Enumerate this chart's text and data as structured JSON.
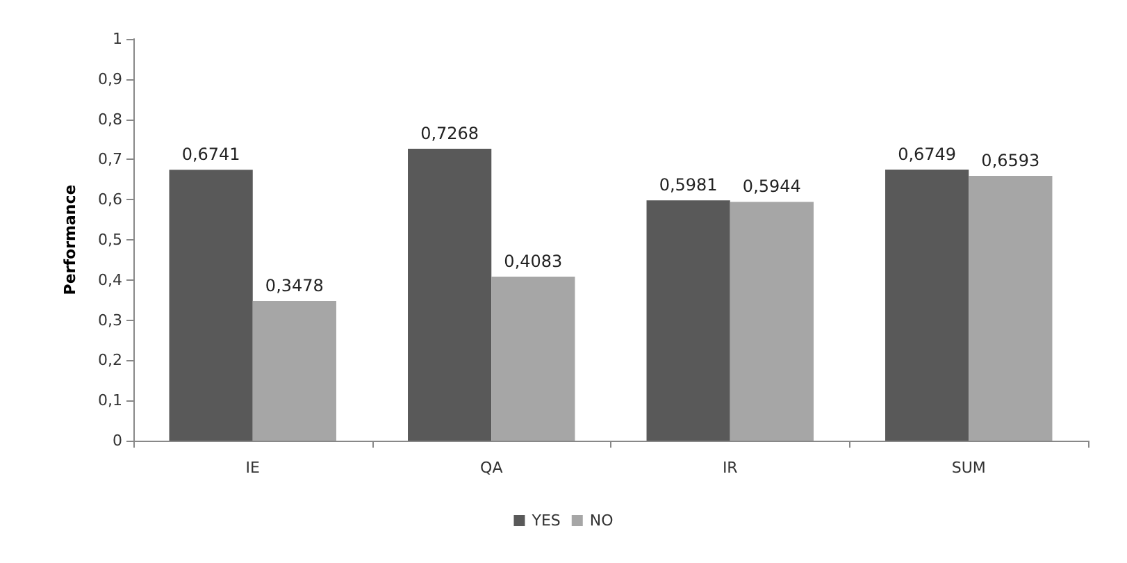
{
  "chart_data": {
    "type": "bar",
    "ylabel": "Performance",
    "categories": [
      "IE",
      "QA",
      "IR",
      "SUM"
    ],
    "series": [
      {
        "name": "YES",
        "color": "#595959",
        "values": [
          0.6741,
          0.7268,
          0.5981,
          0.6749
        ],
        "value_labels": [
          "0,6741",
          "0,7268",
          "0,5981",
          "0,6749"
        ]
      },
      {
        "name": "NO",
        "color": "#a6a6a6",
        "values": [
          0.3478,
          0.4083,
          0.5944,
          0.6593
        ],
        "value_labels": [
          "0,3478",
          "0,4083",
          "0,5944",
          "0,6593"
        ]
      }
    ],
    "ylim": [
      0,
      1
    ],
    "yticks": [
      0,
      {
        "value": 0.1,
        "label": "0,1"
      },
      {
        "value": 0.2,
        "label": "0,2"
      },
      {
        "value": 0.3,
        "label": "0,3"
      },
      {
        "value": 0.4,
        "label": "0,4"
      },
      {
        "value": 0.5,
        "label": "0,5"
      },
      {
        "value": 0.6,
        "label": "0,6"
      },
      {
        "value": 0.7,
        "label": "0,7"
      },
      {
        "value": 0.8,
        "label": "0,8"
      },
      {
        "value": 0.9,
        "label": "0,9"
      },
      1
    ],
    "grid": false,
    "legend": "bottom"
  }
}
